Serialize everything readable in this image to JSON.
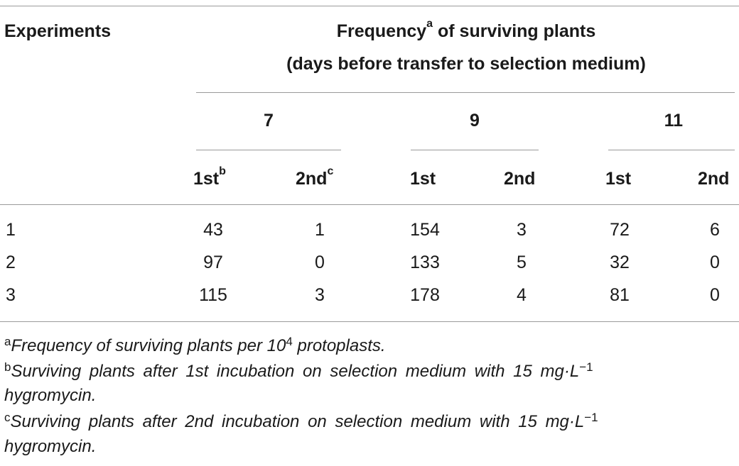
{
  "table": {
    "header": {
      "experiments": "Experiments",
      "frequency_title": "Frequency",
      "frequency_sup": "a",
      "frequency_rest": " of surviving plants",
      "subtitle": "(days before transfer to selection medium)",
      "groups": [
        "7",
        "9",
        "11"
      ],
      "sub": {
        "first": "1st",
        "first_sup": "b",
        "second": "2nd",
        "second_sup": "c"
      }
    },
    "rows": [
      {
        "exp": "1",
        "values": [
          "43",
          "1",
          "154",
          "3",
          "72",
          "6"
        ]
      },
      {
        "exp": "2",
        "values": [
          "97",
          "0",
          "133",
          "5",
          "32",
          "0"
        ]
      },
      {
        "exp": "3",
        "values": [
          "115",
          "3",
          "178",
          "4",
          "81",
          "0"
        ]
      }
    ]
  },
  "footnotes": {
    "a": {
      "mark": "a",
      "text_before": "Frequency of surviving plants per 10",
      "sup": "4",
      "text_after": " protoplasts."
    },
    "b": {
      "mark": "b",
      "line1": "Surviving plants after 1st incubation on selection medium with 15 mg·L",
      "sup": "−1",
      "line2": "hygromycin."
    },
    "c": {
      "mark": "c",
      "line1": "Surviving plants after 2nd incubation on selection medium with 15 mg·L",
      "sup": "−1",
      "line2": "hygromycin."
    }
  }
}
